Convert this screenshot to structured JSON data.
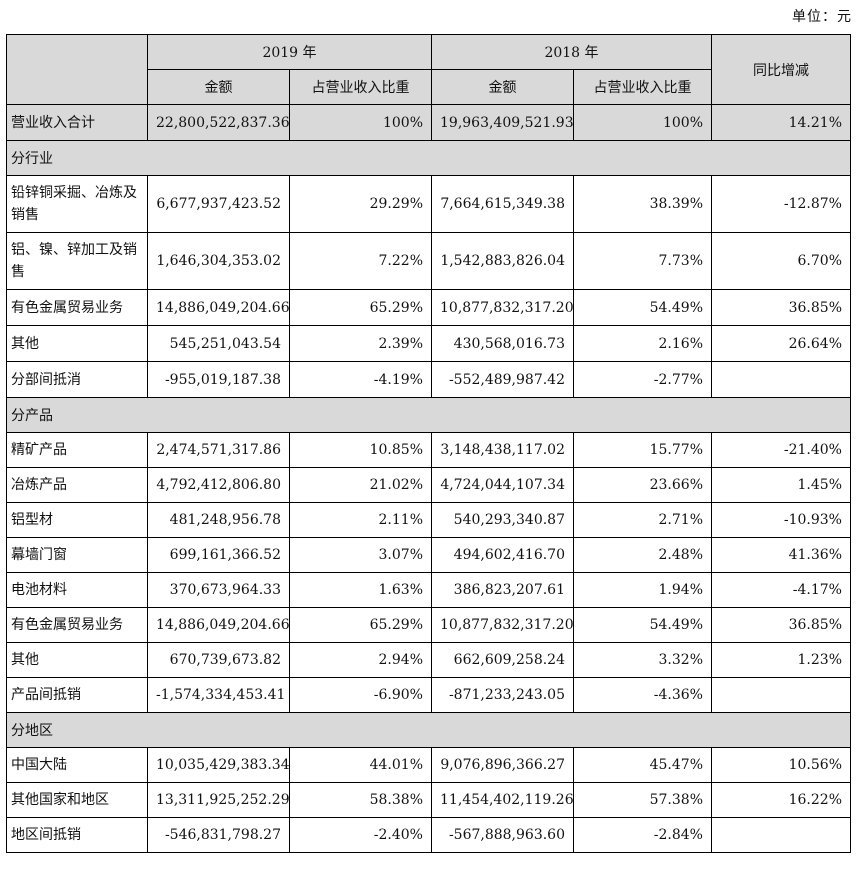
{
  "unit_label": "单位：元",
  "headers": {
    "year_2019": "2019 年",
    "year_2018": "2018 年",
    "amount_2019": "金额",
    "ratio_2019": "占营业收入比重",
    "amount_2018": "金额",
    "ratio_2018": "占营业收入比重",
    "yoy": "同比增减"
  },
  "total": {
    "label": "营业收入合计",
    "a19": "22,800,522,837.36",
    "r19": "100%",
    "a18": "19,963,409,521.93",
    "r18": "100%",
    "yoy": "14.21%"
  },
  "sections": {
    "industry": {
      "title": "分行业",
      "rows": [
        {
          "label": "铅锌铜采掘、冶炼及销售",
          "a19": "6,677,937,423.52",
          "r19": "29.29%",
          "a18": "7,664,615,349.38",
          "r18": "38.39%",
          "yoy": "-12.87%"
        },
        {
          "label": "铝、镍、锌加工及销售",
          "a19": "1,646,304,353.02",
          "r19": "7.22%",
          "a18": "1,542,883,826.04",
          "r18": "7.73%",
          "yoy": "6.70%"
        },
        {
          "label": "有色金属贸易业务",
          "a19": "14,886,049,204.66",
          "r19": "65.29%",
          "a18": "10,877,832,317.20",
          "r18": "54.49%",
          "yoy": "36.85%"
        },
        {
          "label": "其他",
          "a19": "545,251,043.54",
          "r19": "2.39%",
          "a18": "430,568,016.73",
          "r18": "2.16%",
          "yoy": "26.64%"
        },
        {
          "label": "分部间抵消",
          "a19": "-955,019,187.38",
          "r19": "-4.19%",
          "a18": "-552,489,987.42",
          "r18": "-2.77%",
          "yoy": ""
        }
      ]
    },
    "product": {
      "title": "分产品",
      "rows": [
        {
          "label": "精矿产品",
          "a19": "2,474,571,317.86",
          "r19": "10.85%",
          "a18": "3,148,438,117.02",
          "r18": "15.77%",
          "yoy": "-21.40%"
        },
        {
          "label": "冶炼产品",
          "a19": "4,792,412,806.80",
          "r19": "21.02%",
          "a18": "4,724,044,107.34",
          "r18": "23.66%",
          "yoy": "1.45%"
        },
        {
          "label": "铝型材",
          "a19": "481,248,956.78",
          "r19": "2.11%",
          "a18": "540,293,340.87",
          "r18": "2.71%",
          "yoy": "-10.93%"
        },
        {
          "label": "幕墙门窗",
          "a19": "699,161,366.52",
          "r19": "3.07%",
          "a18": "494,602,416.70",
          "r18": "2.48%",
          "yoy": "41.36%"
        },
        {
          "label": "电池材料",
          "a19": "370,673,964.33",
          "r19": "1.63%",
          "a18": "386,823,207.61",
          "r18": "1.94%",
          "yoy": "-4.17%"
        },
        {
          "label": "有色金属贸易业务",
          "a19": "14,886,049,204.66",
          "r19": "65.29%",
          "a18": "10,877,832,317.20",
          "r18": "54.49%",
          "yoy": "36.85%"
        },
        {
          "label": "其他",
          "a19": "670,739,673.82",
          "r19": "2.94%",
          "a18": "662,609,258.24",
          "r18": "3.32%",
          "yoy": "1.23%"
        },
        {
          "label": "产品间抵销",
          "a19": "-1,574,334,453.41",
          "r19": "-6.90%",
          "a18": "-871,233,243.05",
          "r18": "-4.36%",
          "yoy": ""
        }
      ]
    },
    "region": {
      "title": "分地区",
      "rows": [
        {
          "label": "中国大陆",
          "a19": "10,035,429,383.34",
          "r19": "44.01%",
          "a18": "9,076,896,366.27",
          "r18": "45.47%",
          "yoy": "10.56%"
        },
        {
          "label": "其他国家和地区",
          "a19": "13,311,925,252.29",
          "r19": "58.38%",
          "a18": "11,454,402,119.26",
          "r18": "57.38%",
          "yoy": "16.22%"
        },
        {
          "label": "地区间抵销",
          "a19": "-546,831,798.27",
          "r19": "-2.40%",
          "a18": "-567,888,963.60",
          "r18": "-2.84%",
          "yoy": ""
        }
      ]
    }
  }
}
